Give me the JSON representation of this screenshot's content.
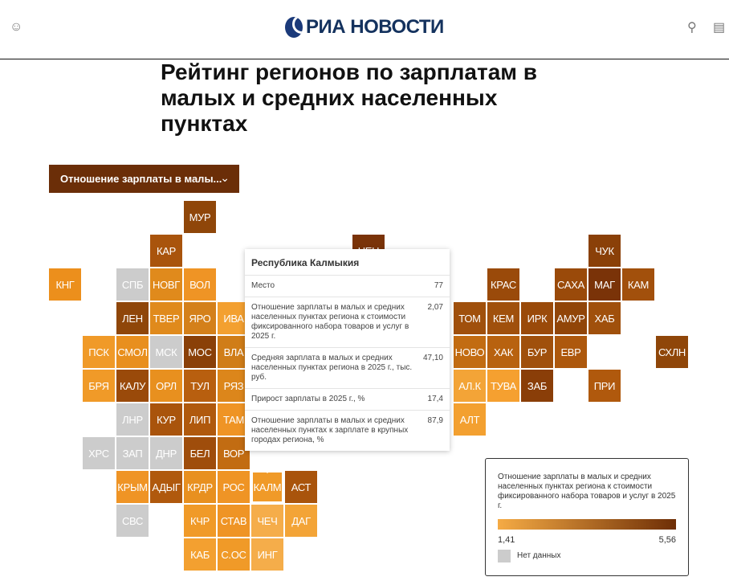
{
  "header": {
    "logo_text": "РИА НОВОСТИ",
    "icons": [
      "user-icon",
      "search-icon",
      "comment-icon"
    ]
  },
  "title": "Рейтинг регионов по зарплатам в малых и средних населенных пунктах",
  "dropdown": {
    "selected": "Отношение зарплаты в малы...",
    "icon": "chevron-down-icon"
  },
  "colors": {
    "gray": "#cccccc",
    "min": "#f5ab45",
    "max": "#6e2e06"
  },
  "chart_data": {
    "type": "heatmap",
    "title": "Отношение зарплаты в малых и средних населенных пунктах региона к стоимости фиксированного набора товаров и услуг в 2025 г.",
    "range": [
      1.41,
      5.56
    ],
    "cells": [
      {
        "label": "МУР",
        "color": "#8f4609"
      },
      {
        "label": "КАР",
        "color": "#a9540c"
      },
      {
        "label": "НЕН",
        "color": "#7a3308"
      },
      {
        "label": "ЧУК",
        "color": "#8a4008"
      },
      {
        "label": "КНГ",
        "color": "#ec8f1c"
      },
      {
        "label": "СПБ",
        "color": "#cccccc"
      },
      {
        "label": "НОВГ",
        "color": "#e08a1c"
      },
      {
        "label": "ВОЛ",
        "color": "#ef9425"
      },
      {
        "label": "КРАС",
        "color": "#9a4a0a"
      },
      {
        "label": "САХА",
        "color": "#9a4a0a"
      },
      {
        "label": "МАГ",
        "color": "#7a3308"
      },
      {
        "label": "КАМ",
        "color": "#a2500c"
      },
      {
        "label": "ЛЕН",
        "color": "#8f4609"
      },
      {
        "label": "ТВЕР",
        "color": "#e08a1c"
      },
      {
        "label": "ЯРО",
        "color": "#d4801a"
      },
      {
        "label": "ИВА",
        "color": "#f3a030"
      },
      {
        "label": "ТОМ",
        "color": "#a0500c"
      },
      {
        "label": "КЕМ",
        "color": "#a0500c"
      },
      {
        "label": "ИРК",
        "color": "#9a4a0a"
      },
      {
        "label": "АМУР",
        "color": "#914508"
      },
      {
        "label": "ХАБ",
        "color": "#a0500c"
      },
      {
        "label": "ПСК",
        "color": "#f09a28"
      },
      {
        "label": "СМОЛ",
        "color": "#e88f1e"
      },
      {
        "label": "МСК",
        "color": "#cccccc"
      },
      {
        "label": "МОС",
        "color": "#8a4008"
      },
      {
        "label": "ВЛА",
        "color": "#d07d18"
      },
      {
        "label": "НОВО",
        "color": "#c26c12"
      },
      {
        "label": "ХАК",
        "color": "#b8620f"
      },
      {
        "label": "БУР",
        "color": "#a0500c"
      },
      {
        "label": "ЕВР",
        "color": "#ad580d"
      },
      {
        "label": "СХЛН",
        "color": "#8f4609"
      },
      {
        "label": "БРЯ",
        "color": "#f09a28"
      },
      {
        "label": "КАЛУ",
        "color": "#9a4a0a"
      },
      {
        "label": "ОРЛ",
        "color": "#e8901f"
      },
      {
        "label": "ТУЛ",
        "color": "#b85f0f"
      },
      {
        "label": "РЯЗ",
        "color": "#dc861b"
      },
      {
        "label": "АЛ.К",
        "color": "#f3a437"
      },
      {
        "label": "ТУВА",
        "color": "#f5a030"
      },
      {
        "label": "ЗАБ",
        "color": "#8a3e08"
      },
      {
        "label": "ПРИ",
        "color": "#b0590d"
      },
      {
        "label": "ЛНР",
        "color": "#cccccc"
      },
      {
        "label": "КУР",
        "color": "#a9540c"
      },
      {
        "label": "ЛИП",
        "color": "#b0590d"
      },
      {
        "label": "ТАМ",
        "color": "#ef9425"
      },
      {
        "label": "АЛТ",
        "color": "#f3a030"
      },
      {
        "label": "ХРС",
        "color": "#cccccc"
      },
      {
        "label": "ЗАП",
        "color": "#cccccc"
      },
      {
        "label": "ДНР",
        "color": "#cccccc"
      },
      {
        "label": "БЕЛ",
        "color": "#9f4d0b"
      },
      {
        "label": "ВОР",
        "color": "#c26c12"
      },
      {
        "label": "КРЫМ",
        "color": "#ef9425"
      },
      {
        "label": "АДЫГ",
        "color": "#b0590d"
      },
      {
        "label": "КРДР",
        "color": "#e8901f"
      },
      {
        "label": "РОС",
        "color": "#ef9425"
      },
      {
        "label": "КАЛМ",
        "color": "#f09a28",
        "value": 2.07
      },
      {
        "label": "АСТ",
        "color": "#a9540c"
      },
      {
        "label": "СВС",
        "color": "#cccccc"
      },
      {
        "label": "КЧР",
        "color": "#f09a28"
      },
      {
        "label": "СТАВ",
        "color": "#ef9425"
      },
      {
        "label": "ЧЕЧ",
        "color": "#f5ad4a"
      },
      {
        "label": "ДАГ",
        "color": "#f3a437"
      },
      {
        "label": "КАБ",
        "color": "#f3a030"
      },
      {
        "label": "С.ОС",
        "color": "#f09a28"
      },
      {
        "label": "ИНГ",
        "color": "#f5ad4a"
      }
    ]
  },
  "tooltip": {
    "title": "Республика Калмыкия",
    "rows": [
      {
        "label": "Место",
        "value": "77"
      },
      {
        "label": "Отношение зарплаты в малых и средних населенных пунктах региона к стоимости фиксированного набора товаров и услуг в 2025 г.",
        "value": "2,07"
      },
      {
        "label": "Средняя зарплата в малых и средних населенных пунктах региона в 2025 г., тыс. руб.",
        "value": "47,10"
      },
      {
        "label": "Прирост зарплаты в 2025 г., %",
        "value": "17,4"
      },
      {
        "label": "Отношение зарплаты в малых и средних населенных пунктах к зарплате в крупных городах региона, %",
        "value": "87,9"
      }
    ]
  },
  "legend": {
    "title": "Отношение зарплаты в малых и средних населенных пунктах региона к стоимости фиксированного набора товаров и услуг в 2025 г.",
    "min_label": "1,41",
    "max_label": "5,56",
    "no_data": "Нет данных"
  }
}
